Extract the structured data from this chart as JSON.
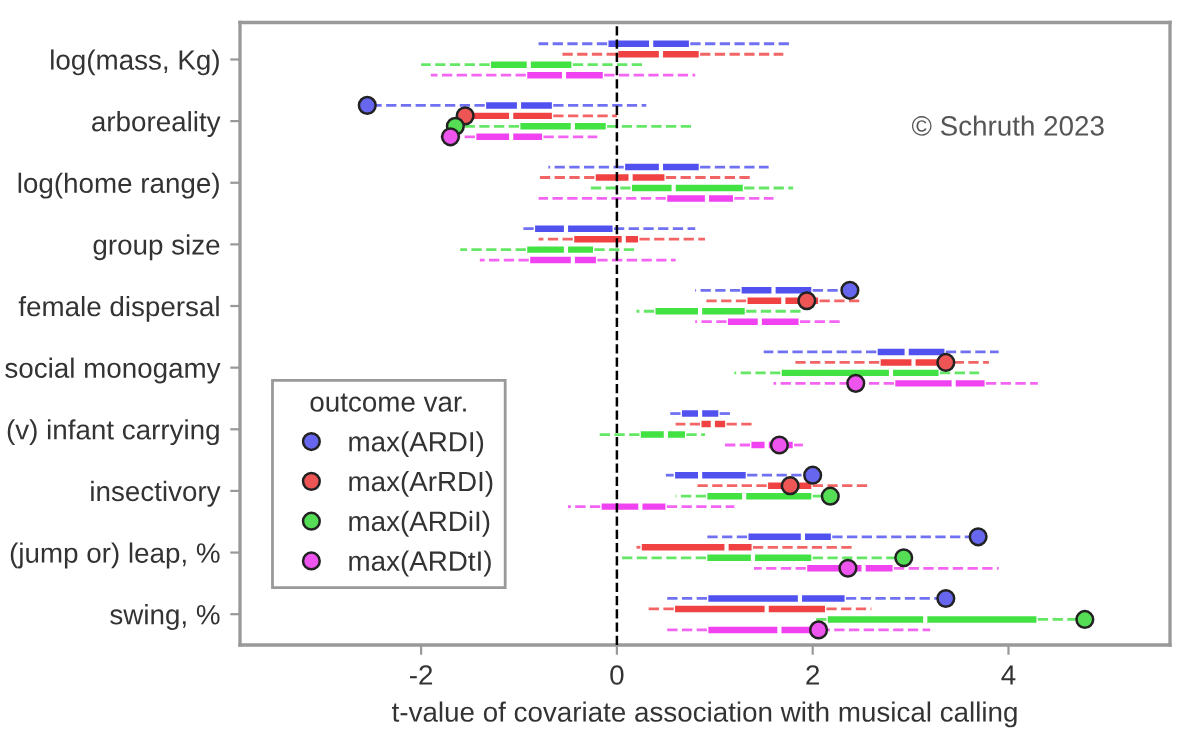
{
  "chart_data": {
    "type": "box",
    "orientation": "horizontal",
    "xlabel": "t-value of covariate association with musical calling",
    "legend_title": "outcome var.",
    "legend": "bottom left",
    "grid": false,
    "xlim": [
      -3.85,
      5.65
    ],
    "xticks": [
      -2,
      0,
      2,
      4
    ],
    "categories": [
      "log(mass, Kg)",
      "arboreality",
      "log(home range)",
      "group size",
      "female dispersal",
      "social monogamy",
      "(v) infant carrying",
      "insectivory",
      "(jump or) leap, %",
      "swing, %"
    ],
    "ref_lines": [
      {
        "axis": "x",
        "value": 0,
        "color": "#000000",
        "line_style": "dashed"
      }
    ],
    "annotations": [
      "© Schruth 2023"
    ],
    "series": [
      {
        "color": "#3333ee",
        "boxes": [
          {
            "low": -0.8,
            "q1": -0.1,
            "median": 0.35,
            "q3": 0.75,
            "high": 1.8
          },
          {
            "low": -2.55,
            "q1": -1.35,
            "median": -1.0,
            "q3": -0.65,
            "high": 0.3
          },
          {
            "low": -0.7,
            "q1": 0.07,
            "median": 0.45,
            "q3": 0.85,
            "high": 1.55
          },
          {
            "low": -1.0,
            "q1": -0.85,
            "median": -0.52,
            "q3": -0.03,
            "high": 0.8
          },
          {
            "low": 0.8,
            "q1": 1.26,
            "median": 1.6,
            "q3": 2.0,
            "high": 2.4
          },
          {
            "low": 1.5,
            "q1": 2.65,
            "median": 2.96,
            "q3": 3.36,
            "high": 3.9
          },
          {
            "low": 0.5,
            "q1": 0.65,
            "median": 0.85,
            "q3": 1.05,
            "high": 1.2
          },
          {
            "low": 0.5,
            "q1": 0.58,
            "median": 0.85,
            "q3": 1.33,
            "high": 2.0
          },
          {
            "low": 0.9,
            "q1": 1.33,
            "median": 1.9,
            "q3": 2.2,
            "high": 3.7
          },
          {
            "low": 0.5,
            "q1": 0.92,
            "median": 1.87,
            "q3": 2.34,
            "high": 3.4
          }
        ]
      },
      {
        "color": "#ee2222",
        "boxes": [
          {
            "low": -0.6,
            "q1": 0.0,
            "median": 0.45,
            "q3": 0.85,
            "high": 1.7
          },
          {
            "low": -1.6,
            "q1": -1.55,
            "median": -1.08,
            "q3": -0.65,
            "high": 0.0
          },
          {
            "low": -0.8,
            "q1": -0.23,
            "median": 0.14,
            "q3": 0.5,
            "high": 1.4
          },
          {
            "low": -0.8,
            "q1": -0.45,
            "median": 0.07,
            "q3": 0.23,
            "high": 0.9
          },
          {
            "low": 0.9,
            "q1": 1.32,
            "median": 1.7,
            "q3": 2.07,
            "high": 2.5
          },
          {
            "low": 1.8,
            "q1": 2.68,
            "median": 3.03,
            "q3": 3.44,
            "high": 3.8
          },
          {
            "low": 0.6,
            "q1": 0.85,
            "median": 0.98,
            "q3": 1.12,
            "high": 1.4
          },
          {
            "low": 0.8,
            "q1": 1.53,
            "median": 1.77,
            "q3": 2.0,
            "high": 2.6
          },
          {
            "low": 0.2,
            "q1": 0.24,
            "median": 1.12,
            "q3": 1.39,
            "high": 2.4
          },
          {
            "low": 0.3,
            "q1": 0.58,
            "median": 1.53,
            "q3": 2.14,
            "high": 2.6
          }
        ]
      },
      {
        "color": "#22dd22",
        "boxes": [
          {
            "low": -2.0,
            "q1": -1.3,
            "median": -0.9,
            "q3": -0.45,
            "high": 0.3
          },
          {
            "low": -1.7,
            "q1": -1.0,
            "median": -0.45,
            "q3": -0.1,
            "high": 0.8
          },
          {
            "low": -0.3,
            "q1": 0.14,
            "median": 0.58,
            "q3": 1.3,
            "high": 1.8
          },
          {
            "low": -1.6,
            "q1": -0.93,
            "median": -0.52,
            "q3": -0.23,
            "high": 0.2
          },
          {
            "low": 0.2,
            "q1": 0.38,
            "median": 0.85,
            "q3": 1.32,
            "high": 1.9
          },
          {
            "low": 1.2,
            "q1": 1.67,
            "median": 2.8,
            "q3": 3.3,
            "high": 3.7
          },
          {
            "low": -0.2,
            "q1": 0.23,
            "median": 0.5,
            "q3": 0.71,
            "high": 0.9
          },
          {
            "low": 0.6,
            "q1": 0.91,
            "median": 1.3,
            "q3": 2.0,
            "high": 2.2
          },
          {
            "low": 0.0,
            "q1": 0.91,
            "median": 1.39,
            "q3": 2.0,
            "high": 2.95
          },
          {
            "low": 2.0,
            "q1": 2.14,
            "median": 3.15,
            "q3": 4.3,
            "high": 4.9
          }
        ]
      },
      {
        "color": "#ee22ee",
        "boxes": [
          {
            "low": -1.9,
            "q1": -0.93,
            "median": -0.54,
            "q3": -0.13,
            "high": 0.8
          },
          {
            "low": -1.8,
            "q1": -1.45,
            "median": -1.08,
            "q3": -0.75,
            "high": -0.2
          },
          {
            "low": -0.8,
            "q1": 0.5,
            "median": 0.92,
            "q3": 1.2,
            "high": 1.6
          },
          {
            "low": -1.4,
            "q1": -0.9,
            "median": -0.45,
            "q3": -0.2,
            "high": 0.6
          },
          {
            "low": 0.8,
            "q1": 1.12,
            "median": 1.46,
            "q3": 1.87,
            "high": 2.3
          },
          {
            "low": 1.6,
            "q1": 2.83,
            "median": 3.44,
            "q3": 3.77,
            "high": 4.3
          },
          {
            "low": 1.1,
            "q1": 1.36,
            "median": 1.53,
            "q3": 1.81,
            "high": 1.9
          },
          {
            "low": -0.5,
            "q1": -0.17,
            "median": 0.24,
            "q3": 0.51,
            "high": 1.2
          },
          {
            "low": 1.4,
            "q1": 1.93,
            "median": 2.52,
            "q3": 2.83,
            "high": 3.9
          },
          {
            "low": 0.5,
            "q1": 0.92,
            "median": 1.66,
            "q3": 2.07,
            "high": 3.2
          }
        ]
      },
      {
        "type": "scatter",
        "name": "max(ARDI)",
        "color": "#6666ee",
        "marker": "circle",
        "values": [
          null,
          -2.55,
          null,
          null,
          2.38,
          null,
          null,
          2.0,
          3.69,
          3.36
        ]
      },
      {
        "type": "scatter",
        "name": "max(ArRDI)",
        "color": "#ee5555",
        "marker": "circle",
        "values": [
          null,
          -1.55,
          null,
          null,
          1.94,
          3.36,
          null,
          1.77,
          null,
          null
        ]
      },
      {
        "type": "scatter",
        "name": "max(ARDiI)",
        "color": "#55dd55",
        "marker": "circle",
        "values": [
          null,
          -1.65,
          null,
          null,
          null,
          null,
          null,
          2.18,
          2.93,
          4.78
        ]
      },
      {
        "type": "scatter",
        "name": "max(ARDtI)",
        "color": "#ee55ee",
        "marker": "circle",
        "values": [
          null,
          -1.7,
          null,
          null,
          null,
          2.44,
          1.66,
          null,
          2.36,
          2.06
        ]
      }
    ]
  }
}
